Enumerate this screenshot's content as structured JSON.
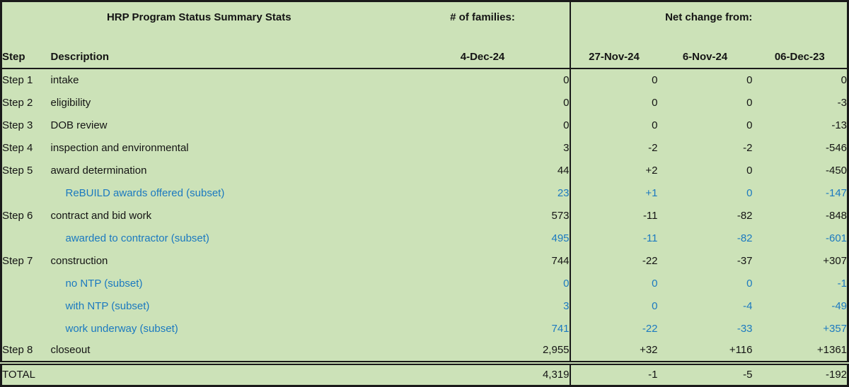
{
  "header": {
    "title": "HRP Program Status Summary Stats",
    "families_label": "# of families:",
    "net_change_label": "Net change from:",
    "col_step": "Step",
    "col_description": "Description",
    "col_current_date": "4-Dec-24",
    "col_dates": [
      "27-Nov-24",
      "6-Nov-24",
      "06-Dec-23"
    ]
  },
  "rows": [
    {
      "step": "Step 1",
      "description": "intake",
      "families": "0",
      "changes": [
        "0",
        "0",
        "0"
      ],
      "subset": false
    },
    {
      "step": "Step 2",
      "description": "eligibility",
      "families": "0",
      "changes": [
        "0",
        "0",
        "-3"
      ],
      "subset": false
    },
    {
      "step": "Step 3",
      "description": "DOB review",
      "families": "0",
      "changes": [
        "0",
        "0",
        "-13"
      ],
      "subset": false
    },
    {
      "step": "Step 4",
      "description": "inspection and environmental",
      "families": "3",
      "changes": [
        "-2",
        "-2",
        "-546"
      ],
      "subset": false
    },
    {
      "step": "Step 5",
      "description": "award determination",
      "families": "44",
      "changes": [
        "+2",
        "0",
        "-450"
      ],
      "subset": false
    },
    {
      "step": "",
      "description": "ReBUILD awards offered (subset)",
      "families": "23",
      "changes": [
        "+1",
        "0",
        "-147"
      ],
      "subset": true
    },
    {
      "step": "Step 6",
      "description": "contract and bid work",
      "families": "573",
      "changes": [
        "-11",
        "-82",
        "-848"
      ],
      "subset": false
    },
    {
      "step": "",
      "description": "awarded to contractor (subset)",
      "families": "495",
      "changes": [
        "-11",
        "-82",
        "-601"
      ],
      "subset": true
    },
    {
      "step": "Step 7",
      "description": "construction",
      "families": "744",
      "changes": [
        "-22",
        "-37",
        "+307"
      ],
      "subset": false
    },
    {
      "step": "",
      "description": "no NTP (subset)",
      "families": "0",
      "changes": [
        "0",
        "0",
        "-1"
      ],
      "subset": true
    },
    {
      "step": "",
      "description": "with NTP (subset)",
      "families": "3",
      "changes": [
        "0",
        "-4",
        "-49"
      ],
      "subset": true
    },
    {
      "step": "",
      "description": "work underway (subset)",
      "families": "741",
      "changes": [
        "-22",
        "-33",
        "+357"
      ],
      "subset": true
    },
    {
      "step": "Step 8",
      "description": "closeout",
      "families": "2,955",
      "changes": [
        "+32",
        "+116",
        "+1361"
      ],
      "subset": false
    }
  ],
  "total": {
    "label": "TOTAL",
    "families": "4,319",
    "changes": [
      "-1",
      "-5",
      "-192"
    ]
  },
  "colors": {
    "background": "#cce2b8",
    "subset_text": "#1b79c0",
    "text": "#141414",
    "total_text": "#14344f",
    "border": "#1a1a1a"
  }
}
